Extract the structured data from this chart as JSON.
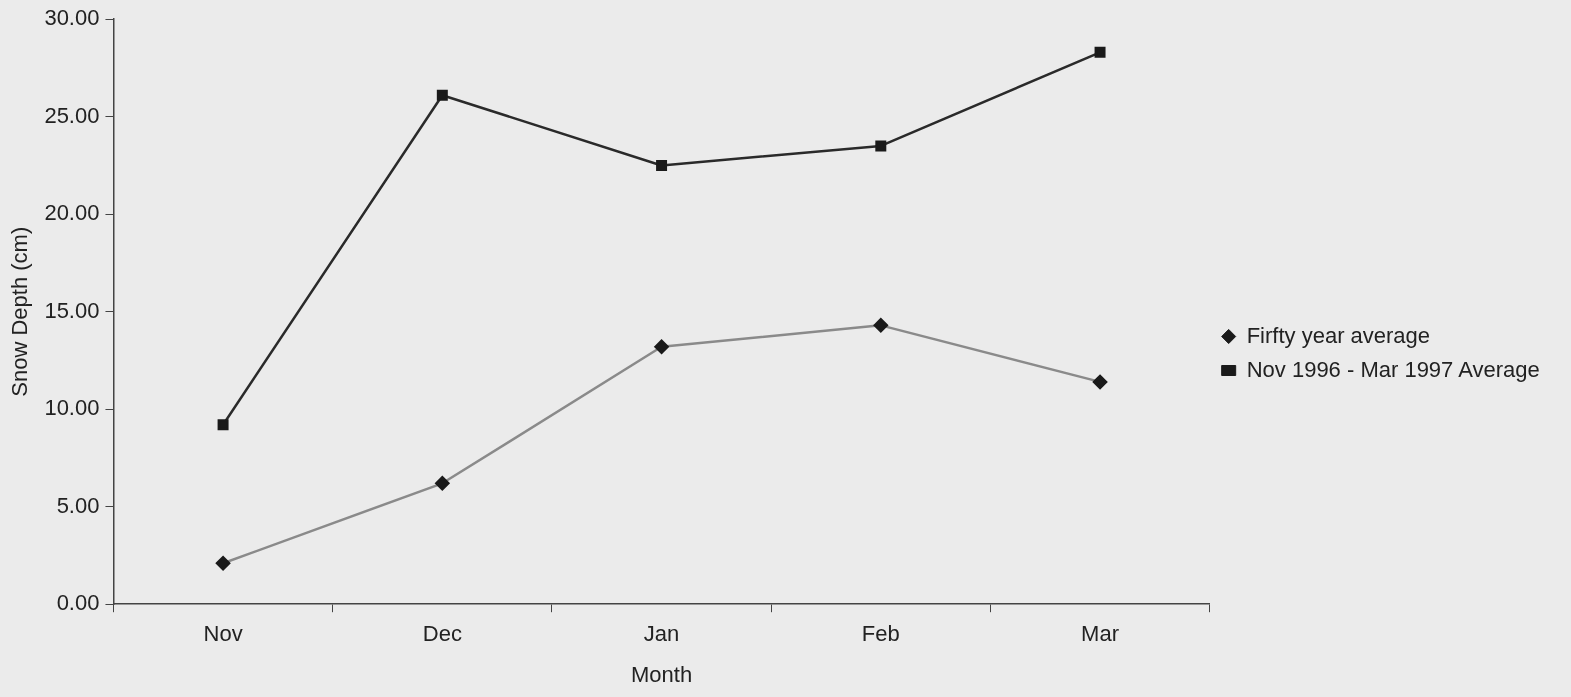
{
  "chart_data": {
    "type": "line",
    "xlabel": "Month",
    "ylabel": "Snow Depth (cm)",
    "categories": [
      "Nov",
      "Dec",
      "Jan",
      "Feb",
      "Mar"
    ],
    "series": [
      {
        "name": "Firfty year average",
        "color": "#8a8a8a",
        "marker": "diamond",
        "values": [
          2.1,
          6.2,
          13.2,
          14.3,
          11.4
        ]
      },
      {
        "name": "Nov 1996 - Mar 1997 Average",
        "color": "#2a2a2a",
        "marker": "square",
        "values": [
          9.2,
          26.1,
          22.5,
          23.5,
          28.3
        ]
      }
    ],
    "ylim": [
      0,
      30
    ],
    "yticks": [
      {
        "value": 0,
        "label": "0.00"
      },
      {
        "value": 5,
        "label": "5.00"
      },
      {
        "value": 10,
        "label": "10.00"
      },
      {
        "value": 15,
        "label": "15.00"
      },
      {
        "value": 20,
        "label": "20.00"
      },
      {
        "value": 25,
        "label": "25.00"
      },
      {
        "value": 30,
        "label": "30.00"
      }
    ],
    "grid": false,
    "legend": "right",
    "line_style": "solid"
  }
}
